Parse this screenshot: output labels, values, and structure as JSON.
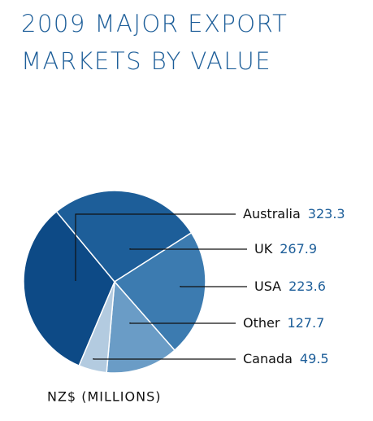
{
  "chart_data": {
    "type": "pie",
    "title": "2009 MAJOR EXPORT MARKETS BY VALUE",
    "subtitle": "NZ$ (MILLIONS)",
    "categories": [
      "Australia",
      "UK",
      "USA",
      "Other",
      "Canada"
    ],
    "values": [
      323.3,
      267.9,
      223.6,
      127.7,
      49.5
    ],
    "colors": [
      "#0d4a86",
      "#1d5e99",
      "#3c7bb0",
      "#6a9cc6",
      "#b3cbe0"
    ]
  }
}
